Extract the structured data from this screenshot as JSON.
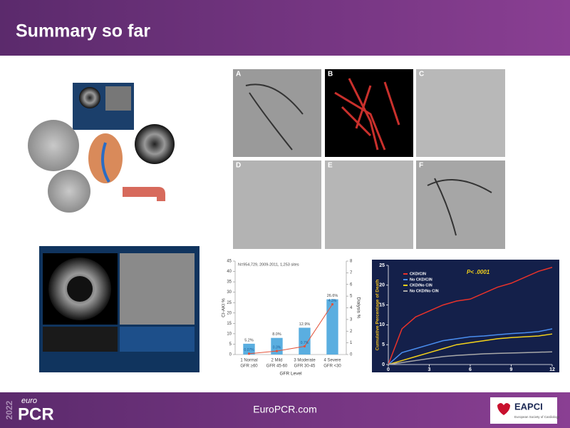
{
  "header": {
    "title": "Summary so far"
  },
  "panels": {
    "labels": [
      "A",
      "B",
      "C",
      "D",
      "E",
      "F"
    ]
  },
  "chart_data": [
    {
      "type": "bar",
      "subtitle": "N=954,729, 2009-2011, 1,253 sites",
      "categories": [
        "1 Normal",
        "2 Mild",
        "3 Moderate",
        "4 Severe"
      ],
      "category_sublabels": [
        "GFR ≥60",
        "GFR 45-60",
        "GFR 30-45",
        "GFR <30"
      ],
      "xlabel": "GFR Level",
      "ylabel": "CI-AKI %",
      "y2label": "Dialysis %",
      "series": [
        {
          "type": "bar",
          "color": "#5aaee0",
          "values": [
            5.2,
            8.0,
            12.9,
            26.6
          ],
          "value_labels": [
            "5.2%",
            "8.0%",
            "12.9%",
            "26.6%"
          ]
        },
        {
          "type": "line",
          "axis": "y2",
          "color": "#e4533a",
          "values": [
            0.07,
            0.3,
            0.7,
            4.3
          ],
          "value_labels": [
            "0.07%",
            "0.3%",
            "0.7%",
            "4.3%"
          ]
        }
      ],
      "ylim": [
        0,
        45
      ],
      "yticks": [
        0,
        5,
        10,
        15,
        20,
        25,
        30,
        35,
        40,
        45
      ],
      "y2lim": [
        0,
        8
      ],
      "y2ticks": [
        0,
        1,
        2,
        3,
        4,
        5,
        6,
        7,
        8
      ]
    },
    {
      "type": "line",
      "ylabel": "Cumulative Percentage of Death",
      "annotation": "P< .0001",
      "legend": "upper-left",
      "x": [
        0,
        1,
        2,
        3,
        4,
        5,
        6,
        7,
        8,
        9,
        10,
        11,
        12
      ],
      "xlim": [
        0,
        12
      ],
      "xticks": [
        0,
        3,
        6,
        9,
        12
      ],
      "ylim": [
        0,
        25
      ],
      "yticks": [
        0,
        5,
        10,
        15,
        20,
        25
      ],
      "series": [
        {
          "name": "CKD/CIN",
          "color": "#e8322a",
          "values": [
            0,
            9,
            12,
            13.5,
            15,
            16,
            16.5,
            18,
            19.5,
            20.5,
            22,
            23.5,
            24.5
          ]
        },
        {
          "name": "No CKD/CIN",
          "color": "#4a8ef0",
          "values": [
            0,
            3,
            4,
            5,
            6,
            6.5,
            7,
            7.2,
            7.5,
            7.8,
            8,
            8.3,
            9
          ]
        },
        {
          "name": "CKD/No CIN",
          "color": "#f4d21a",
          "values": [
            0,
            1,
            2,
            3,
            4,
            5,
            5.5,
            6,
            6.5,
            6.8,
            7,
            7.2,
            7.7
          ]
        },
        {
          "name": "No CKD/No CIN",
          "color": "#a8a8a8",
          "values": [
            0,
            0.5,
            1,
            1.5,
            2,
            2.3,
            2.5,
            2.7,
            2.8,
            2.9,
            3,
            3.1,
            3.2
          ]
        }
      ]
    }
  ],
  "footer": {
    "year": "2022",
    "brand_prefix": "euro",
    "brand": "PCR",
    "url": "EuroPCR.com",
    "partner": "EAPCI",
    "partner_subtitle": "European Society of Cardiology"
  }
}
